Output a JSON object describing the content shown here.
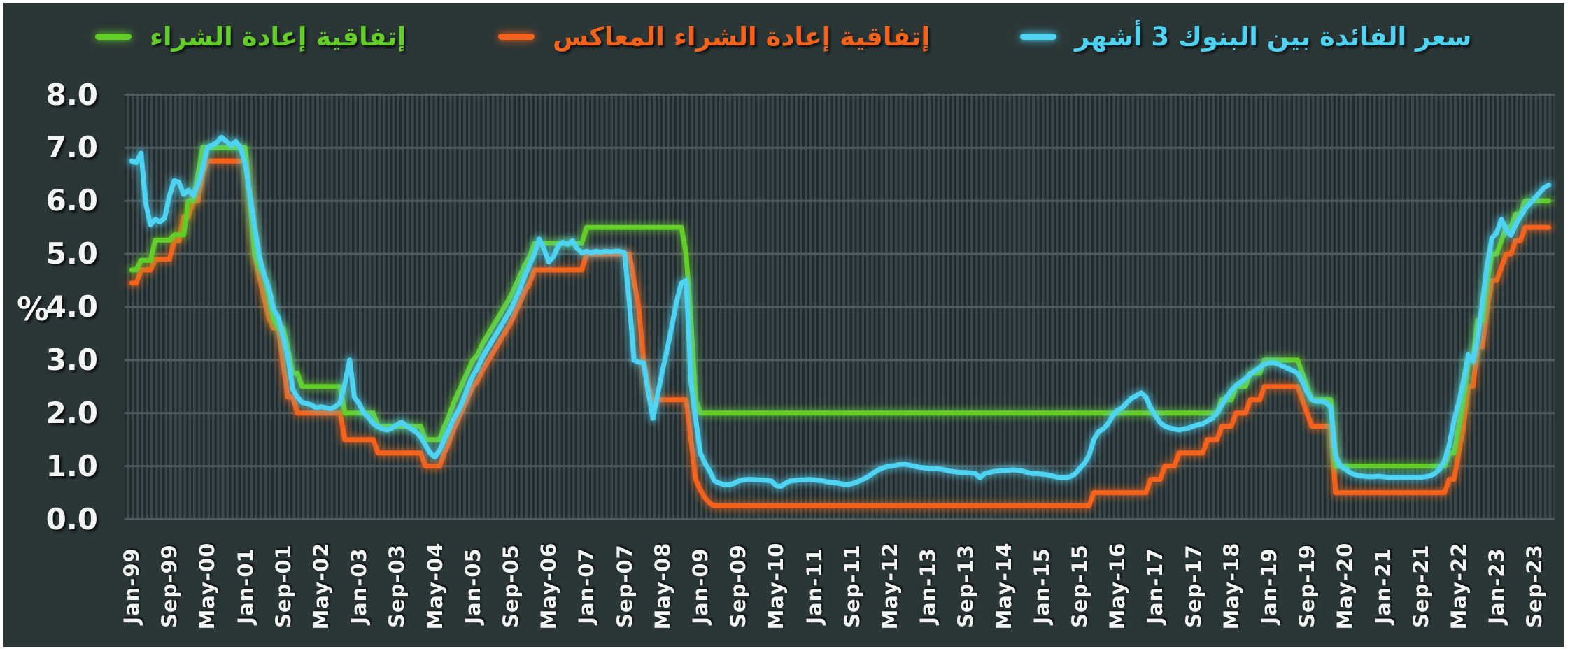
{
  "page": {
    "background": "#ffffff",
    "card_background": "#2b3637"
  },
  "legend": {
    "items": [
      {
        "series": "interbank_3m",
        "label": "سعر الفائدة بين البنوك 3 أشهر",
        "color": "#4ed3f2"
      },
      {
        "series": "reverse_repo",
        "label": "إتفاقية إعادة الشراء المعاكس",
        "color": "#f4621c"
      },
      {
        "series": "repo",
        "label": "إتفاقية إعادة الشراء",
        "color": "#63ce28"
      }
    ]
  },
  "y_axis": {
    "title": "%"
  },
  "chart_data": {
    "type": "line",
    "title": "",
    "xlabel": "",
    "ylabel": "%",
    "x_start": "Jan-1999",
    "x_end": "Dec-2023",
    "frequency": "monthly",
    "months_per_tick": 8,
    "x_tick_labels": [
      "Jan-99",
      "Sep-99",
      "May-00",
      "Jan-01",
      "Sep-01",
      "May-02",
      "Jan-03",
      "Sep-03",
      "May-04",
      "Jan-05",
      "Sep-05",
      "May-06",
      "Jan-07",
      "Sep-07",
      "May-08",
      "Jan-09",
      "Sep-09",
      "May-10",
      "Jan-11",
      "Sep-11",
      "May-12",
      "Jan-13",
      "Sep-13",
      "May-14",
      "Jan-15",
      "Sep-15",
      "May-16",
      "Jan-17",
      "Sep-17",
      "May-18",
      "Jan-19",
      "Sep-19",
      "May-20",
      "Jan-21",
      "Sep-21",
      "May-22",
      "Jan-23",
      "Sep-23"
    ],
    "y_tick_labels": [
      "8.0",
      "7.0",
      "6.0",
      "5.0",
      "4.0",
      "3.0",
      "2.0",
      "1.0",
      "0.0"
    ],
    "ylim": [
      0,
      8
    ],
    "grid": "horizontal unit gridlines plus fine monthly vertical stripes",
    "legend_position": "top",
    "series": [
      {
        "name": "reverse_repo",
        "label_ar": "إتفاقية إعادة الشراء المعاكس",
        "label_en": "Reverse repurchase agreement rate",
        "color": "#f4621c",
        "values": [
          4.45,
          4.45,
          4.7,
          4.7,
          4.7,
          4.9,
          4.9,
          4.9,
          4.9,
          5.25,
          5.25,
          5.7,
          5.7,
          6.0,
          6.0,
          6.5,
          6.75,
          6.75,
          6.75,
          6.75,
          6.75,
          6.75,
          6.75,
          6.75,
          6.75,
          6.0,
          4.95,
          4.55,
          4.15,
          3.78,
          3.6,
          3.6,
          2.9,
          2.3,
          2.3,
          2.0,
          2.0,
          2.0,
          2.0,
          2.0,
          2.0,
          2.0,
          2.0,
          2.0,
          2.0,
          1.5,
          1.5,
          1.5,
          1.5,
          1.5,
          1.5,
          1.5,
          1.25,
          1.25,
          1.25,
          1.25,
          1.25,
          1.25,
          1.25,
          1.25,
          1.25,
          1.25,
          1.0,
          1.0,
          1.0,
          1.0,
          1.25,
          1.45,
          1.7,
          1.9,
          2.1,
          2.3,
          2.5,
          2.6,
          2.8,
          2.95,
          3.1,
          3.25,
          3.4,
          3.55,
          3.7,
          3.9,
          4.1,
          4.3,
          4.45,
          4.7,
          4.7,
          4.7,
          4.7,
          4.7,
          4.7,
          4.7,
          4.7,
          4.7,
          4.7,
          4.7,
          5.0,
          5.0,
          5.0,
          5.0,
          5.0,
          5.0,
          5.0,
          5.0,
          5.0,
          5.0,
          4.5,
          4.0,
          3.0,
          2.5,
          2.25,
          2.25,
          2.25,
          2.25,
          2.25,
          2.25,
          2.25,
          2.25,
          1.5,
          0.75,
          0.55,
          0.4,
          0.3,
          0.25,
          0.25,
          0.25,
          0.25,
          0.25,
          0.25,
          0.25,
          0.25,
          0.25,
          0.25,
          0.25,
          0.25,
          0.25,
          0.25,
          0.25,
          0.25,
          0.25,
          0.25,
          0.25,
          0.25,
          0.25,
          0.25,
          0.25,
          0.25,
          0.25,
          0.25,
          0.25,
          0.25,
          0.25,
          0.25,
          0.25,
          0.25,
          0.25,
          0.25,
          0.25,
          0.25,
          0.25,
          0.25,
          0.25,
          0.25,
          0.25,
          0.25,
          0.25,
          0.25,
          0.25,
          0.25,
          0.25,
          0.25,
          0.25,
          0.25,
          0.25,
          0.25,
          0.25,
          0.25,
          0.25,
          0.25,
          0.25,
          0.25,
          0.25,
          0.25,
          0.25,
          0.25,
          0.25,
          0.25,
          0.25,
          0.25,
          0.25,
          0.25,
          0.25,
          0.25,
          0.25,
          0.25,
          0.25,
          0.25,
          0.25,
          0.25,
          0.25,
          0.25,
          0.25,
          0.25,
          0.5,
          0.5,
          0.5,
          0.5,
          0.5,
          0.5,
          0.5,
          0.5,
          0.5,
          0.5,
          0.5,
          0.5,
          0.75,
          0.75,
          0.75,
          1.0,
          1.0,
          1.0,
          1.25,
          1.25,
          1.25,
          1.25,
          1.25,
          1.25,
          1.5,
          1.5,
          1.5,
          1.75,
          1.75,
          1.75,
          2.0,
          2.0,
          2.0,
          2.25,
          2.25,
          2.25,
          2.5,
          2.5,
          2.5,
          2.5,
          2.5,
          2.5,
          2.5,
          2.5,
          2.25,
          2.0,
          1.75,
          1.75,
          1.75,
          1.75,
          1.75,
          0.5,
          0.5,
          0.5,
          0.5,
          0.5,
          0.5,
          0.5,
          0.5,
          0.5,
          0.5,
          0.5,
          0.5,
          0.5,
          0.5,
          0.5,
          0.5,
          0.5,
          0.5,
          0.5,
          0.5,
          0.5,
          0.5,
          0.5,
          0.5,
          0.75,
          0.75,
          1.25,
          1.75,
          2.5,
          2.5,
          3.25,
          3.25,
          4.0,
          4.5,
          4.5,
          4.75,
          5.0,
          5.0,
          5.25,
          5.25,
          5.5,
          5.5,
          5.5,
          5.5,
          5.5,
          5.5
        ]
      },
      {
        "name": "repo",
        "label_ar": "إتفاقية إعادة الشراء",
        "label_en": "Repurchase agreement rate",
        "color": "#63ce28",
        "values": [
          4.7,
          4.7,
          4.88,
          4.88,
          4.88,
          5.26,
          5.26,
          5.26,
          5.26,
          5.36,
          5.36,
          5.36,
          6.0,
          6.0,
          6.5,
          7.0,
          7.0,
          7.0,
          7.0,
          7.0,
          7.0,
          7.0,
          7.0,
          7.0,
          7.0,
          6.0,
          5.0,
          4.75,
          4.6,
          4.2,
          3.75,
          3.6,
          3.6,
          3.2,
          2.75,
          2.75,
          2.5,
          2.5,
          2.5,
          2.5,
          2.5,
          2.5,
          2.5,
          2.5,
          2.5,
          2.0,
          2.0,
          2.0,
          2.0,
          2.0,
          2.0,
          2.0,
          1.75,
          1.75,
          1.75,
          1.75,
          1.75,
          1.75,
          1.75,
          1.75,
          1.75,
          1.75,
          1.5,
          1.5,
          1.5,
          1.5,
          1.75,
          1.95,
          2.2,
          2.4,
          2.6,
          2.8,
          3.0,
          3.1,
          3.3,
          3.45,
          3.6,
          3.75,
          3.9,
          4.05,
          4.2,
          4.4,
          4.6,
          4.8,
          4.95,
          5.2,
          5.2,
          5.2,
          5.2,
          5.2,
          5.2,
          5.2,
          5.2,
          5.2,
          5.2,
          5.2,
          5.5,
          5.5,
          5.5,
          5.5,
          5.5,
          5.5,
          5.5,
          5.5,
          5.5,
          5.5,
          5.5,
          5.5,
          5.5,
          5.5,
          5.5,
          5.5,
          5.5,
          5.5,
          5.5,
          5.5,
          5.5,
          5.0,
          3.75,
          2.25,
          2.0,
          2.0,
          2.0,
          2.0,
          2.0,
          2.0,
          2.0,
          2.0,
          2.0,
          2.0,
          2.0,
          2.0,
          2.0,
          2.0,
          2.0,
          2.0,
          2.0,
          2.0,
          2.0,
          2.0,
          2.0,
          2.0,
          2.0,
          2.0,
          2.0,
          2.0,
          2.0,
          2.0,
          2.0,
          2.0,
          2.0,
          2.0,
          2.0,
          2.0,
          2.0,
          2.0,
          2.0,
          2.0,
          2.0,
          2.0,
          2.0,
          2.0,
          2.0,
          2.0,
          2.0,
          2.0,
          2.0,
          2.0,
          2.0,
          2.0,
          2.0,
          2.0,
          2.0,
          2.0,
          2.0,
          2.0,
          2.0,
          2.0,
          2.0,
          2.0,
          2.0,
          2.0,
          2.0,
          2.0,
          2.0,
          2.0,
          2.0,
          2.0,
          2.0,
          2.0,
          2.0,
          2.0,
          2.0,
          2.0,
          2.0,
          2.0,
          2.0,
          2.0,
          2.0,
          2.0,
          2.0,
          2.0,
          2.0,
          2.0,
          2.0,
          2.0,
          2.0,
          2.0,
          2.0,
          2.0,
          2.0,
          2.0,
          2.0,
          2.0,
          2.0,
          2.0,
          2.0,
          2.0,
          2.0,
          2.0,
          2.0,
          2.0,
          2.0,
          2.0,
          2.0,
          2.0,
          2.0,
          2.0,
          2.0,
          2.0,
          2.25,
          2.25,
          2.25,
          2.5,
          2.5,
          2.5,
          2.75,
          2.75,
          2.75,
          3.0,
          3.0,
          3.0,
          3.0,
          3.0,
          3.0,
          3.0,
          3.0,
          2.75,
          2.5,
          2.25,
          2.25,
          2.25,
          2.25,
          2.25,
          1.0,
          1.0,
          1.0,
          1.0,
          1.0,
          1.0,
          1.0,
          1.0,
          1.0,
          1.0,
          1.0,
          1.0,
          1.0,
          1.0,
          1.0,
          1.0,
          1.0,
          1.0,
          1.0,
          1.0,
          1.0,
          1.0,
          1.0,
          1.0,
          1.25,
          1.25,
          1.75,
          2.25,
          3.0,
          3.0,
          3.75,
          3.75,
          4.5,
          5.0,
          5.0,
          5.25,
          5.5,
          5.5,
          5.75,
          5.75,
          6.0,
          6.0,
          6.0,
          6.0,
          6.0,
          6.0
        ]
      },
      {
        "name": "interbank_3m",
        "label_ar": "سعر الفائدة بين البنوك 3 أشهر",
        "label_en": "3-month interbank rate (SAIBOR)",
        "color": "#4ed3f2",
        "values": [
          6.75,
          6.72,
          6.9,
          5.95,
          5.55,
          5.65,
          5.6,
          5.68,
          6.1,
          6.38,
          6.35,
          6.12,
          6.2,
          6.1,
          6.3,
          6.6,
          7.0,
          7.05,
          7.1,
          7.2,
          7.12,
          7.05,
          7.12,
          7.0,
          6.7,
          6.1,
          5.5,
          4.95,
          4.6,
          4.35,
          3.95,
          3.8,
          3.45,
          3.05,
          2.45,
          2.3,
          2.2,
          2.18,
          2.15,
          2.1,
          2.12,
          2.1,
          2.08,
          2.12,
          2.2,
          2.55,
          3.0,
          2.3,
          2.18,
          2.0,
          1.92,
          1.8,
          1.74,
          1.7,
          1.68,
          1.72,
          1.78,
          1.83,
          1.76,
          1.7,
          1.65,
          1.55,
          1.4,
          1.25,
          1.17,
          1.3,
          1.5,
          1.7,
          1.9,
          2.05,
          2.25,
          2.5,
          2.7,
          2.85,
          3.05,
          3.2,
          3.35,
          3.5,
          3.65,
          3.8,
          3.95,
          4.15,
          4.35,
          4.6,
          4.8,
          5.0,
          5.28,
          5.1,
          4.85,
          4.95,
          5.15,
          5.22,
          5.18,
          5.25,
          5.1,
          5.02,
          5.05,
          5.02,
          5.05,
          5.03,
          5.05,
          5.04,
          5.05,
          5.05,
          5.02,
          4.1,
          3.0,
          2.96,
          2.95,
          2.4,
          1.9,
          2.35,
          2.8,
          3.2,
          3.65,
          4.1,
          4.45,
          4.5,
          2.6,
          1.9,
          1.25,
          1.05,
          0.9,
          0.72,
          0.68,
          0.65,
          0.65,
          0.67,
          0.72,
          0.74,
          0.75,
          0.75,
          0.74,
          0.74,
          0.73,
          0.72,
          0.63,
          0.62,
          0.68,
          0.72,
          0.73,
          0.74,
          0.74,
          0.75,
          0.74,
          0.73,
          0.72,
          0.7,
          0.69,
          0.68,
          0.66,
          0.65,
          0.67,
          0.7,
          0.74,
          0.78,
          0.84,
          0.9,
          0.95,
          0.98,
          1.0,
          1.01,
          1.03,
          1.04,
          1.02,
          1.0,
          0.98,
          0.97,
          0.96,
          0.95,
          0.95,
          0.94,
          0.92,
          0.9,
          0.89,
          0.88,
          0.88,
          0.87,
          0.86,
          0.78,
          0.86,
          0.88,
          0.9,
          0.91,
          0.92,
          0.92,
          0.93,
          0.92,
          0.91,
          0.88,
          0.86,
          0.86,
          0.85,
          0.84,
          0.82,
          0.8,
          0.78,
          0.78,
          0.8,
          0.85,
          0.95,
          1.05,
          1.2,
          1.5,
          1.65,
          1.7,
          1.8,
          1.95,
          2.05,
          2.1,
          2.2,
          2.28,
          2.33,
          2.38,
          2.3,
          2.1,
          1.95,
          1.82,
          1.75,
          1.72,
          1.7,
          1.68,
          1.7,
          1.72,
          1.75,
          1.78,
          1.8,
          1.85,
          1.9,
          2.0,
          2.15,
          2.3,
          2.42,
          2.52,
          2.58,
          2.65,
          2.73,
          2.8,
          2.86,
          2.92,
          2.95,
          2.95,
          2.92,
          2.88,
          2.84,
          2.8,
          2.75,
          2.6,
          2.4,
          2.25,
          2.22,
          2.22,
          2.2,
          2.1,
          1.2,
          1.0,
          0.95,
          0.88,
          0.84,
          0.82,
          0.81,
          0.8,
          0.8,
          0.81,
          0.8,
          0.79,
          0.79,
          0.79,
          0.79,
          0.79,
          0.79,
          0.79,
          0.79,
          0.8,
          0.82,
          0.86,
          0.95,
          1.1,
          1.4,
          1.85,
          2.2,
          2.6,
          3.1,
          2.98,
          3.4,
          4.1,
          4.8,
          5.3,
          5.4,
          5.65,
          5.45,
          5.35,
          5.55,
          5.7,
          5.85,
          5.95,
          6.05,
          6.15,
          6.25,
          6.3
        ]
      }
    ],
    "style": {
      "background": "#2b3637",
      "stripe_dark": "#212c2f",
      "stripe_light": "#3a474b",
      "gridline_color": "#4f5c60",
      "axis_text_color": "#f2f4f4"
    }
  }
}
